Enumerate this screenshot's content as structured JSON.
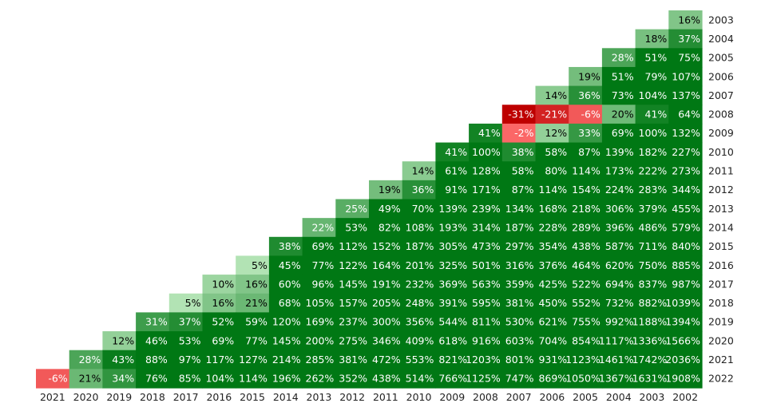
{
  "chart_data": {
    "type": "heatmap",
    "title": "",
    "xlabel": "",
    "ylabel": "",
    "x_categories": [
      "2021",
      "2020",
      "2019",
      "2018",
      "2017",
      "2016",
      "2015",
      "2014",
      "2013",
      "2012",
      "2011",
      "2010",
      "2009",
      "2008",
      "2007",
      "2006",
      "2005",
      "2004",
      "2003",
      "2002"
    ],
    "y_categories": [
      "2003",
      "2004",
      "2005",
      "2006",
      "2007",
      "2008",
      "2009",
      "2010",
      "2011",
      "2012",
      "2013",
      "2014",
      "2015",
      "2016",
      "2017",
      "2018",
      "2019",
      "2020",
      "2021",
      "2022"
    ],
    "value_format": "percent",
    "color_scale": {
      "negative": "#cc0000",
      "positive": "#006400"
    },
    "rows": [
      [
        16
      ],
      [
        18,
        37
      ],
      [
        28,
        51,
        75
      ],
      [
        19,
        51,
        79,
        107
      ],
      [
        14,
        36,
        73,
        104,
        137
      ],
      [
        -31,
        -21,
        -6,
        20,
        41,
        64
      ],
      [
        41,
        -2,
        12,
        33,
        69,
        100,
        132
      ],
      [
        41,
        100,
        38,
        58,
        87,
        139,
        182,
        227
      ],
      [
        14,
        61,
        128,
        58,
        80,
        114,
        173,
        222,
        273
      ],
      [
        19,
        36,
        91,
        171,
        87,
        114,
        154,
        224,
        283,
        344
      ],
      [
        25,
        49,
        70,
        139,
        239,
        134,
        168,
        218,
        306,
        379,
        455
      ],
      [
        22,
        53,
        82,
        108,
        193,
        314,
        187,
        228,
        289,
        396,
        486,
        579
      ],
      [
        38,
        69,
        112,
        152,
        187,
        305,
        473,
        297,
        354,
        438,
        587,
        711,
        840
      ],
      [
        5,
        45,
        77,
        122,
        164,
        201,
        325,
        501,
        316,
        376,
        464,
        620,
        750,
        885
      ],
      [
        10,
        16,
        60,
        96,
        145,
        191,
        232,
        369,
        563,
        359,
        425,
        522,
        694,
        837,
        987
      ],
      [
        5,
        16,
        21,
        68,
        105,
        157,
        205,
        248,
        391,
        595,
        381,
        450,
        552,
        732,
        882,
        1039
      ],
      [
        31,
        37,
        52,
        59,
        120,
        169,
        237,
        300,
        356,
        544,
        811,
        530,
        621,
        755,
        992,
        1188,
        1394
      ],
      [
        12,
        46,
        53,
        69,
        77,
        145,
        200,
        275,
        346,
        409,
        618,
        916,
        603,
        704,
        854,
        1117,
        1336,
        1566
      ],
      [
        28,
        43,
        88,
        97,
        117,
        127,
        214,
        285,
        381,
        472,
        553,
        821,
        1203,
        801,
        931,
        1123,
        1461,
        1742,
        2036
      ],
      [
        -6,
        21,
        34,
        76,
        85,
        104,
        114,
        196,
        262,
        352,
        438,
        514,
        766,
        1125,
        747,
        869,
        1050,
        1367,
        1631,
        1908
      ]
    ]
  }
}
